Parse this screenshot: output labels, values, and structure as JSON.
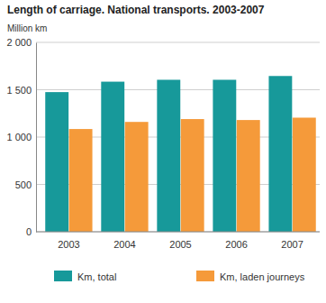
{
  "chart_data": {
    "type": "bar",
    "title": "Length of carriage. National transports. 2003-2007",
    "y_label": "Million km",
    "categories": [
      "2003",
      "2004",
      "2005",
      "2006",
      "2007"
    ],
    "series": [
      {
        "name": "Km, total",
        "color": "#17999a",
        "values": [
          1475,
          1585,
          1605,
          1605,
          1645
        ]
      },
      {
        "name": "Km, laden journeys",
        "color": "#f59a3a",
        "values": [
          1085,
          1160,
          1190,
          1180,
          1205
        ]
      }
    ],
    "ylim": [
      0,
      2000
    ],
    "yticks": [
      0,
      500,
      {
        "value": 1000,
        "label": "1 000"
      },
      {
        "value": 1500,
        "label": "1 500"
      },
      {
        "value": 2000,
        "label": "2 000"
      }
    ],
    "grid": true,
    "legend": "bottom"
  }
}
